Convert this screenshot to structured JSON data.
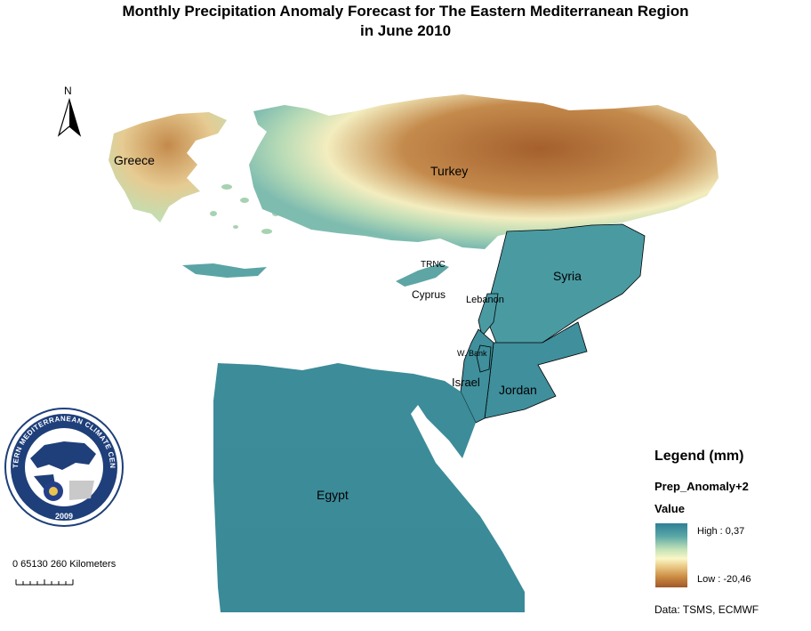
{
  "title": {
    "line1": "Monthly Precipitation Anomaly Forecast for  The Eastern Mediterranean Region",
    "line2": "in June 2010"
  },
  "north_label": "N",
  "labels": {
    "greece": "Greece",
    "turkey": "Turkey",
    "trnc": "TRNC",
    "cyprus": "Cyprus",
    "syria": "Syria",
    "lebanon": "Lebanon",
    "west_bank": "W. Bank",
    "israel": "Israel",
    "jordan": "Jordan",
    "egypt": "Egypt"
  },
  "logo": {
    "top_text": "EASTERN MEDITERRANEAN CLIMATE CENTRE",
    "year": "2009"
  },
  "scale_bar": {
    "text": "0  65130   260 Kilometers"
  },
  "legend": {
    "title": "Legend (mm)",
    "field": "Prep_Anomaly+2",
    "value_label": "Value",
    "high": "High : 0,37",
    "low": "Low : -20,46"
  },
  "credit": "Data:  TSMS, ECMWF",
  "colors": {
    "high": "#2f7f95",
    "mid": "#fbf7c6",
    "low": "#a0582a",
    "logo_blue": "#1e3f7a"
  }
}
